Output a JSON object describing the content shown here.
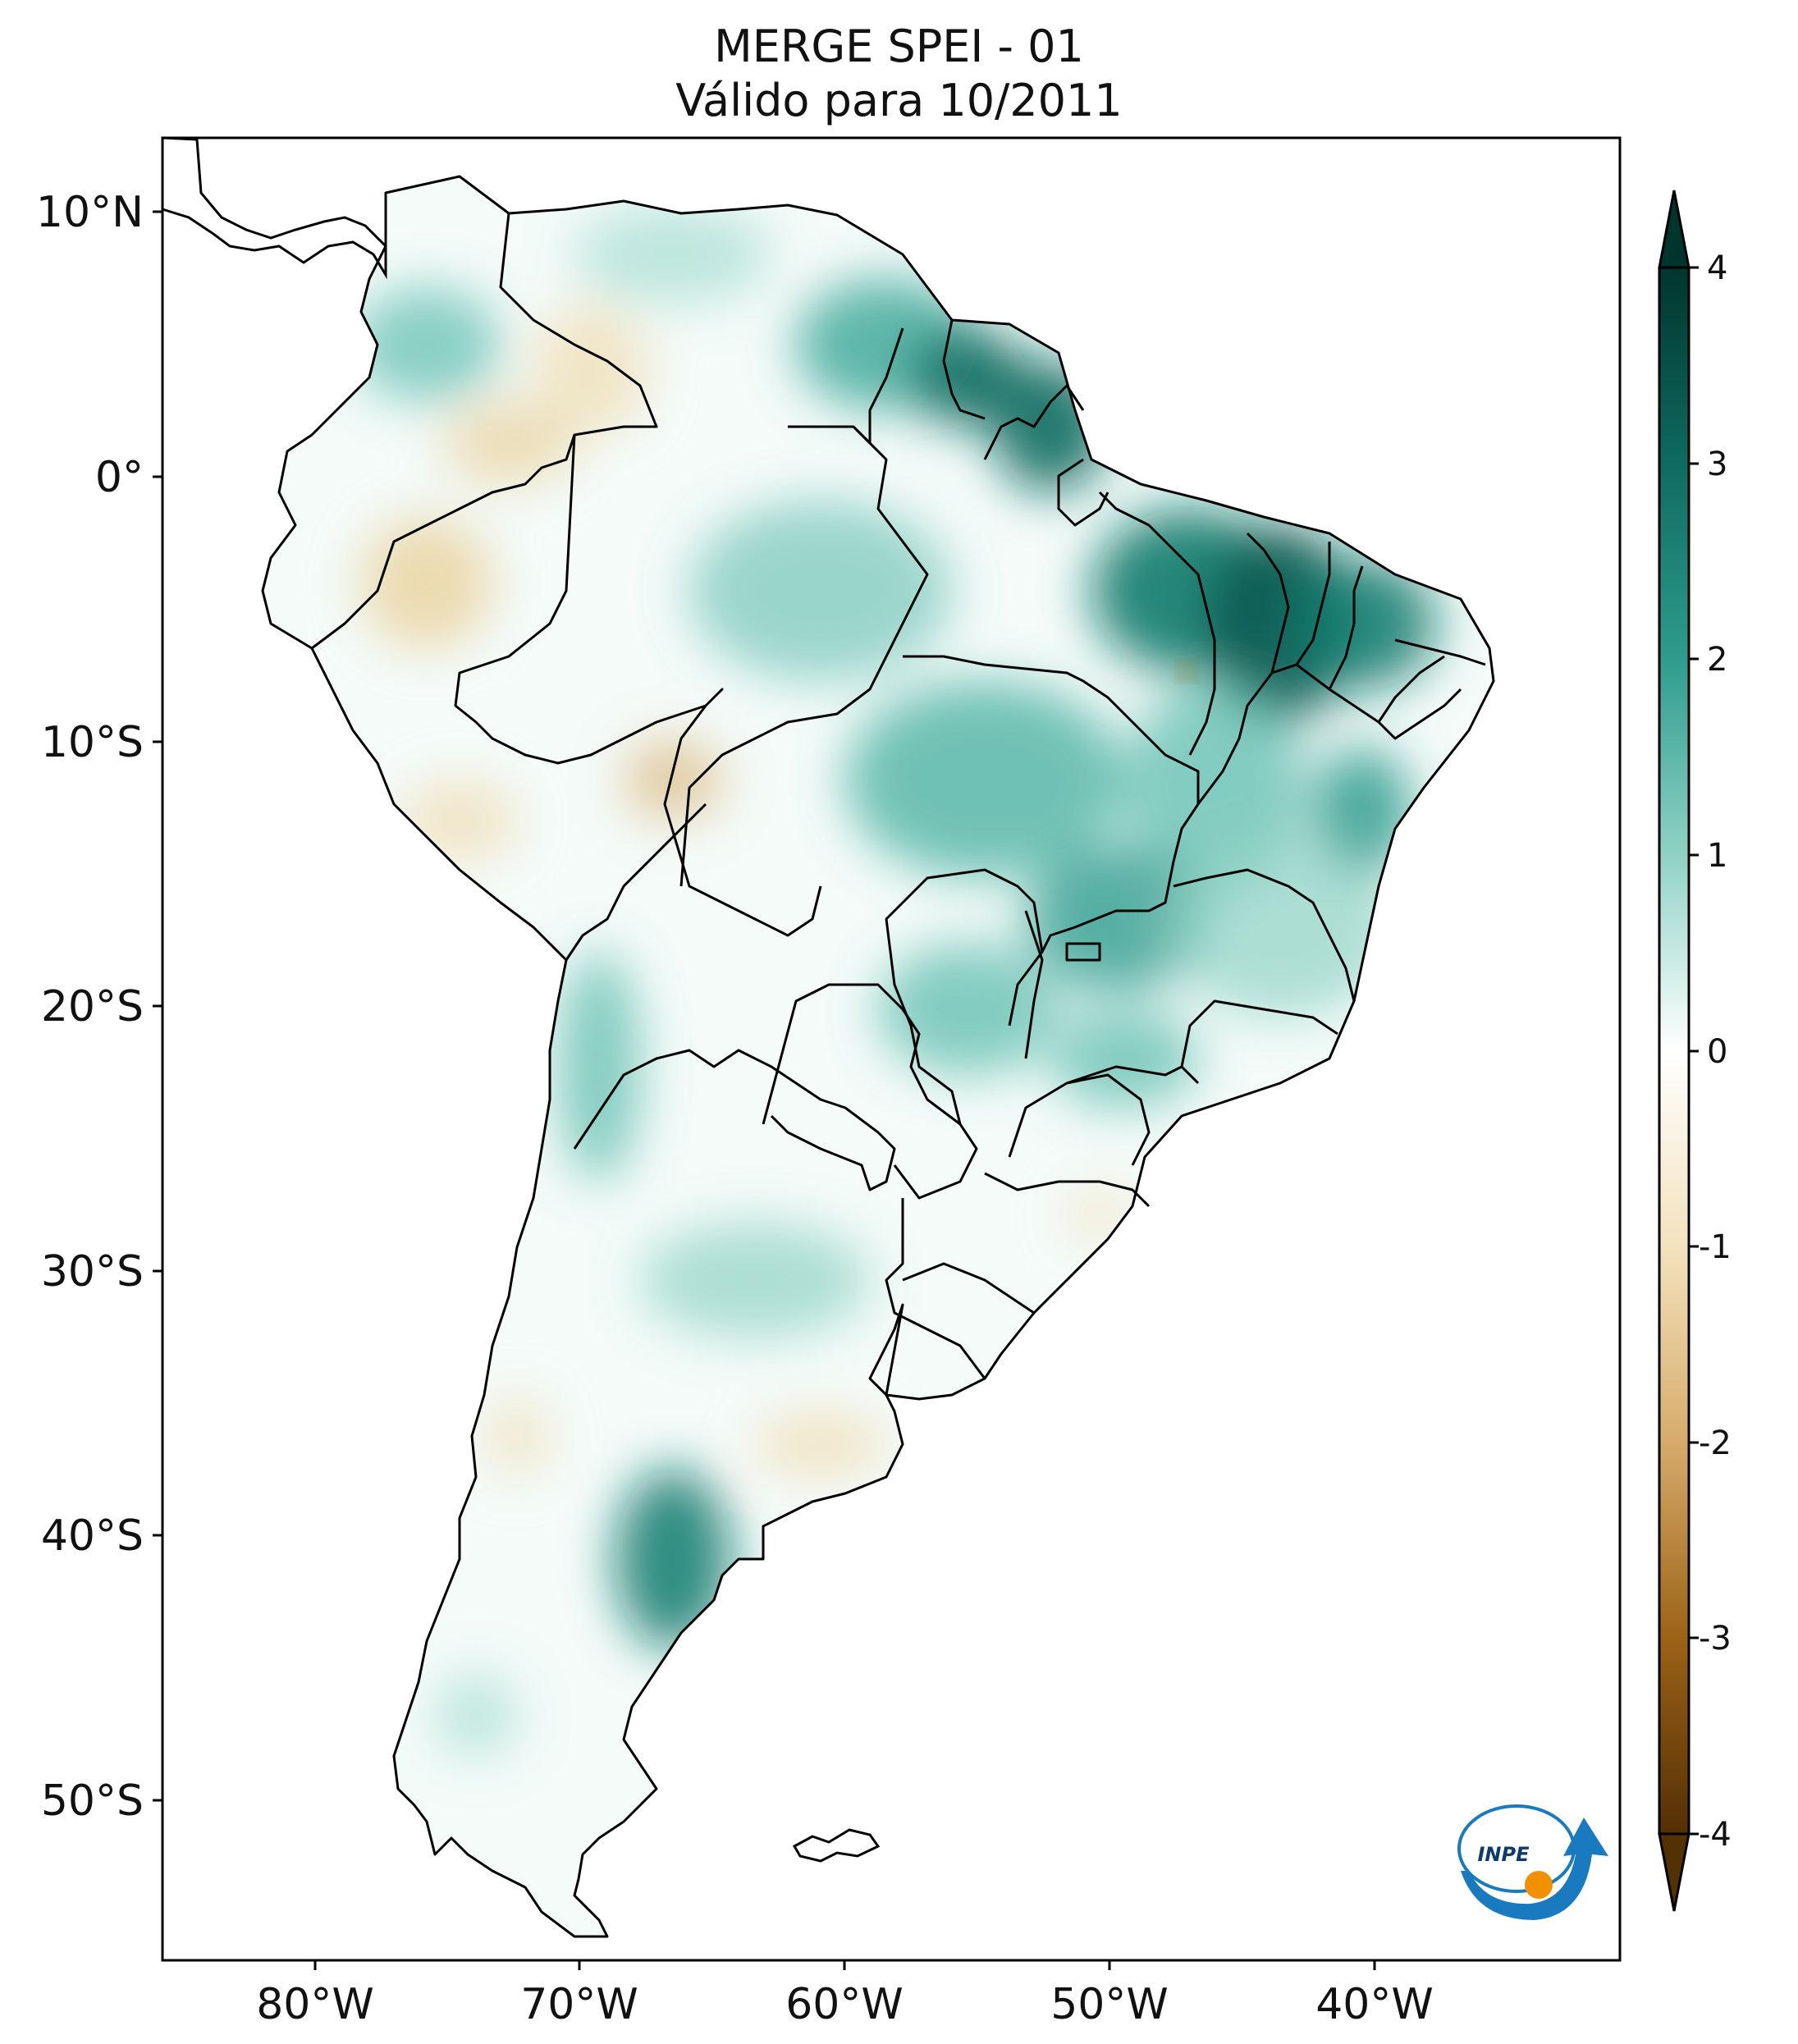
{
  "title": {
    "line1": "MERGE   SPEI - 01",
    "line2": "Válido para 10/2011"
  },
  "map": {
    "region": "South America",
    "lon_range": [
      -85,
      -30
    ],
    "lat_range": [
      -56,
      13
    ],
    "lon_ticks": [
      "80°W",
      "70°W",
      "60°W",
      "50°W",
      "40°W"
    ],
    "lat_ticks": [
      "10°N",
      "0°",
      "10°S",
      "20°S",
      "30°S",
      "40°S",
      "50°S"
    ]
  },
  "colorbar": {
    "ticks": [
      "4",
      "3",
      "2",
      "1",
      "0",
      "-1",
      "-2",
      "-3",
      "-4"
    ],
    "range": [
      -4,
      4
    ],
    "colors": {
      "wet_max": "#00352e",
      "wet": "#2e9c8e",
      "light_wet": "#bfe6de",
      "neutral": "#ffffff",
      "light_dry": "#f3e2bd",
      "dry": "#c48a3a",
      "dry_max": "#543005"
    }
  },
  "logo": {
    "text": "INPE"
  }
}
